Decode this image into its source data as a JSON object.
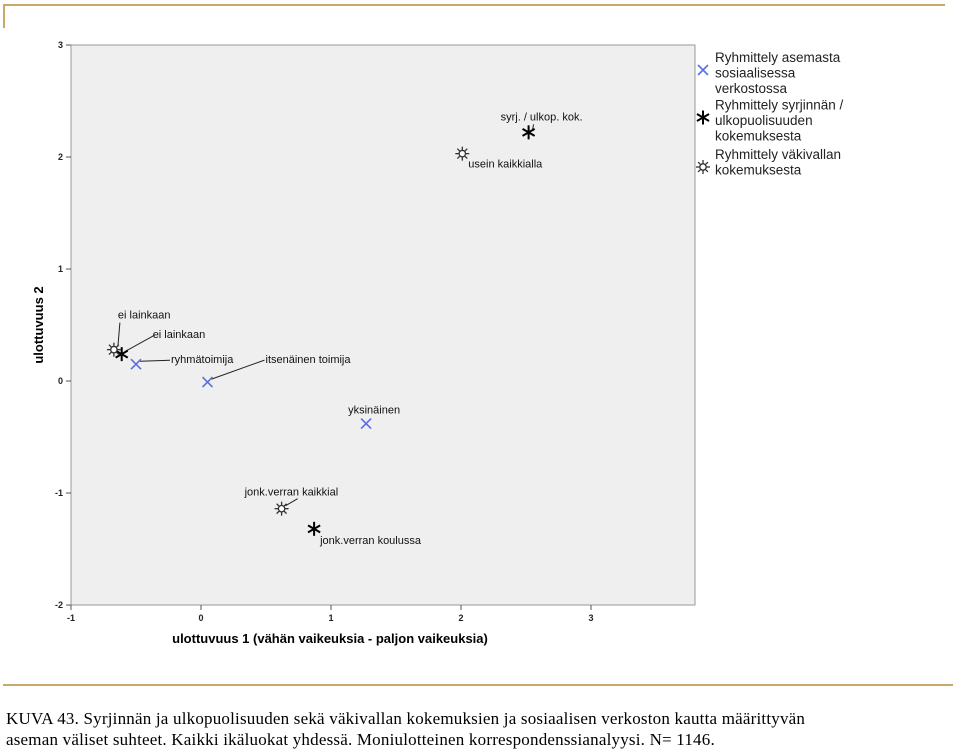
{
  "chart_data": {
    "type": "scatter",
    "xlabel": "ulottuvuus 1 (vähän vaikeuksia - paljon vaikeuksia)",
    "ylabel": "ulottuvuus 2",
    "xlim": [
      -1,
      3.8
    ],
    "ylim": [
      -2,
      3
    ],
    "xticks": [
      "-1",
      "0",
      "1",
      "2",
      "3"
    ],
    "yticks": [
      "-2",
      "-1",
      "0",
      "1",
      "2",
      "3"
    ],
    "legend_position": "right",
    "series": [
      {
        "name": "Ryhmittely asemasta sosiaalisessa verkostossa",
        "legend_lines": [
          "Ryhmittely asemasta",
          "sosiaalisessa",
          "verkostossa"
        ],
        "marker": "x",
        "color": "#5b6ee1",
        "points": [
          {
            "x": -0.5,
            "y": 0.15,
            "label": "ryhmätoimija"
          },
          {
            "x": 0.05,
            "y": -0.01,
            "label": "itsenäinen toimija"
          },
          {
            "x": 1.27,
            "y": -0.38,
            "label": "yksinäinen"
          }
        ]
      },
      {
        "name": "Ryhmittely syrjinnän / ulkopuolisuuden kokemuksesta",
        "legend_lines": [
          "Ryhmittely syrjinnän /",
          "ulkopuolisuuden",
          "kokemuksesta"
        ],
        "marker": "star",
        "color": "#000000",
        "points": [
          {
            "x": 2.52,
            "y": 2.22,
            "label": "syrj. / ulkop. kok."
          },
          {
            "x": -0.61,
            "y": 0.24,
            "label": "ei lainkaan"
          },
          {
            "x": 0.87,
            "y": -1.32,
            "label": "jonk.verran koulussa"
          }
        ]
      },
      {
        "name": "Ryhmittely väkivallan kokemuksesta",
        "legend_lines": [
          "Ryhmittely väkivallan",
          "kokemuksesta"
        ],
        "marker": "burst",
        "color": "#333333",
        "points": [
          {
            "x": 2.01,
            "y": 2.03,
            "label": "usein kaikkialla"
          },
          {
            "x": -0.67,
            "y": 0.28,
            "label": "ei lainkaan"
          },
          {
            "x": 0.62,
            "y": -1.14,
            "label": "jonk.verran kaikkial"
          }
        ]
      }
    ]
  },
  "caption": {
    "line1": "KUVA 43.  Syrjinnän ja ulkopuolisuuden sekä väkivallan kokemuksien ja sosiaalisen verkoston kautta määrittyvän",
    "line2": "aseman väliset suhteet. Kaikki ikäluokat yhdessä. Moniulotteinen korrespondenssianalyysi. N= 1146."
  }
}
